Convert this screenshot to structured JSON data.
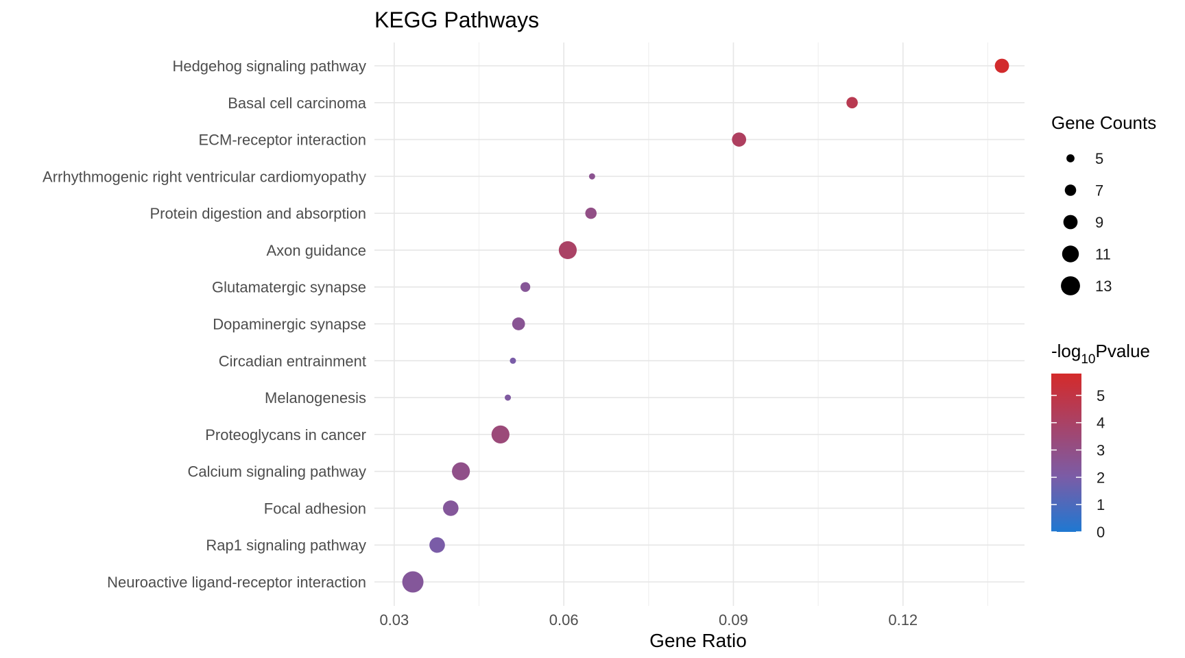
{
  "chart_data": {
    "type": "scatter",
    "title": "KEGG Pathways",
    "xlabel": "Gene Ratio",
    "ylabel": "",
    "xlim": [
      0.0265,
      0.1415
    ],
    "x_ticks": [
      0.03,
      0.06,
      0.09,
      0.12
    ],
    "x_tick_labels": [
      "0.03",
      "0.06",
      "0.09",
      "0.12"
    ],
    "grid": true,
    "points": [
      {
        "pathway": "Hedgehog signaling pathway",
        "gene_ratio": 0.1375,
        "count": 9,
        "neg_log10_pvalue": 5.7
      },
      {
        "pathway": "Basal cell carcinoma",
        "gene_ratio": 0.111,
        "count": 7,
        "neg_log10_pvalue": 4.6
      },
      {
        "pathway": "ECM-receptor interaction",
        "gene_ratio": 0.091,
        "count": 9,
        "neg_log10_pvalue": 4.2
      },
      {
        "pathway": "Arrhythmogenic right ventricular cardiomyopathy",
        "gene_ratio": 0.065,
        "count": 4,
        "neg_log10_pvalue": 2.7
      },
      {
        "pathway": "Protein digestion and absorption",
        "gene_ratio": 0.0648,
        "count": 7,
        "neg_log10_pvalue": 3.0
      },
      {
        "pathway": "Axon guidance",
        "gene_ratio": 0.0607,
        "count": 12,
        "neg_log10_pvalue": 4.0
      },
      {
        "pathway": "Glutamatergic synapse",
        "gene_ratio": 0.0532,
        "count": 6,
        "neg_log10_pvalue": 2.5
      },
      {
        "pathway": "Dopaminergic synapse",
        "gene_ratio": 0.052,
        "count": 8,
        "neg_log10_pvalue": 2.6
      },
      {
        "pathway": "Circadian entrainment",
        "gene_ratio": 0.051,
        "count": 4,
        "neg_log10_pvalue": 2.0
      },
      {
        "pathway": "Melanogenesis",
        "gene_ratio": 0.0501,
        "count": 4,
        "neg_log10_pvalue": 2.2
      },
      {
        "pathway": "Proteoglycans in cancer",
        "gene_ratio": 0.0488,
        "count": 12,
        "neg_log10_pvalue": 3.4
      },
      {
        "pathway": "Calcium signaling pathway",
        "gene_ratio": 0.0418,
        "count": 12,
        "neg_log10_pvalue": 2.9
      },
      {
        "pathway": "Focal adhesion",
        "gene_ratio": 0.04,
        "count": 10,
        "neg_log10_pvalue": 2.4
      },
      {
        "pathway": "Rap1 signaling pathway",
        "gene_ratio": 0.0376,
        "count": 10,
        "neg_log10_pvalue": 2.0
      },
      {
        "pathway": "Neuroactive ligand-receptor interaction",
        "gene_ratio": 0.0333,
        "count": 15,
        "neg_log10_pvalue": 2.4
      }
    ],
    "size_legend": {
      "title": "Gene Counts",
      "values": [
        5,
        7,
        9,
        11,
        13
      ]
    },
    "color_legend": {
      "title_prefix": "-log",
      "title_subscript": "10",
      "title_suffix": "Pvalue",
      "range": [
        0,
        5.8
      ],
      "ticks": [
        0,
        1,
        2,
        3,
        4,
        5
      ],
      "low_color": "#1f78d1",
      "mid_color": "#7b5ca6",
      "high_color": "#d42a2a"
    }
  }
}
